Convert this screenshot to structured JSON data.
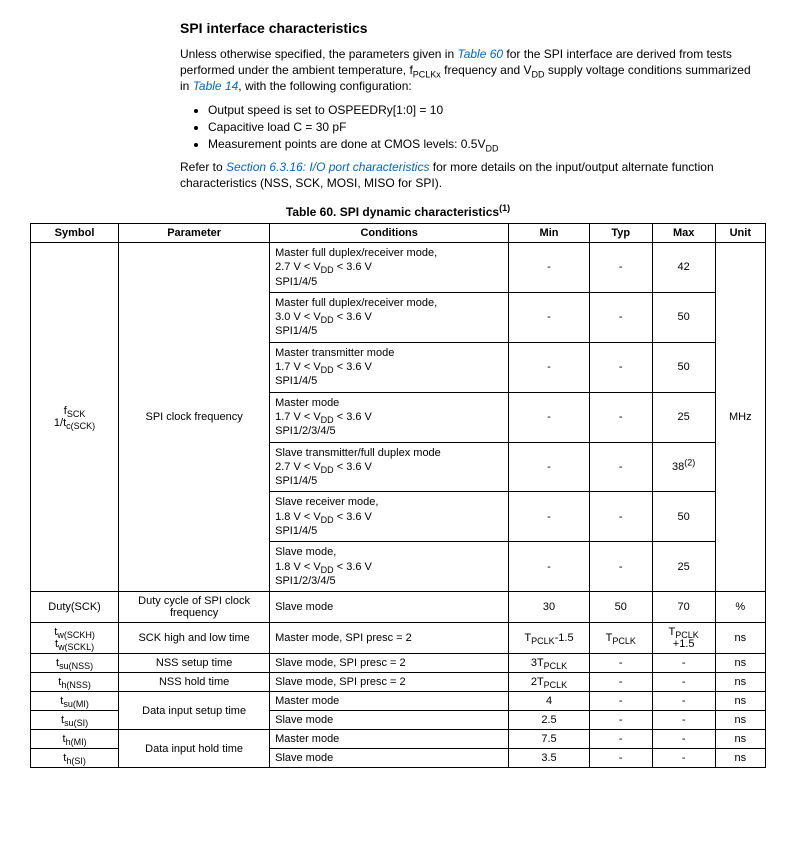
{
  "heading": "SPI interface characteristics",
  "intro": {
    "p1_a": "Unless otherwise specified, the parameters given in ",
    "p1_link1": "Table 60",
    "p1_b": " for the SPI interface are derived from tests performed under the ambient temperature, f",
    "p1_sub1": "PCLKx",
    "p1_c": " frequency and V",
    "p1_sub2": "DD",
    "p1_d": " supply voltage conditions summarized in ",
    "p1_link2": "Table 14",
    "p1_e": ", with the following configuration:",
    "bullet1": "Output speed is set to OSPEEDRy[1:0] = 10",
    "bullet2": "Capacitive load C = 30 pF",
    "bullet3_a": "Measurement points are done at CMOS levels: 0.5V",
    "bullet3_sub": "DD",
    "p2_a": "Refer to ",
    "p2_link": "Section 6.3.16: I/O port characteristics",
    "p2_b": " for more details on the input/output alternate function characteristics (NSS, SCK, MOSI, MISO for SPI)."
  },
  "caption_a": "Table 60. SPI dynamic characteristics",
  "caption_sup": "(1)",
  "headers": {
    "symbol": "Symbol",
    "parameter": "Parameter",
    "conditions": "Conditions",
    "min": "Min",
    "typ": "Typ",
    "max": "Max",
    "unit": "Unit"
  },
  "r1": {
    "sym_a": "f",
    "sym_a_sub": "SCK",
    "sym_b": "1/t",
    "sym_b_sub": "c(SCK)",
    "param": "SPI clock frequency",
    "c1_l1": "Master full duplex/receiver mode,",
    "c1_l2a": "2.7 V < V",
    "c1_l2sub": "DD",
    "c1_l2b": " < 3.6 V",
    "c1_l3": "SPI1/4/5",
    "c1_min": "-",
    "c1_typ": "-",
    "c1_max": "42",
    "c2_l1": "Master full duplex/receiver mode,",
    "c2_l2a": "3.0 V < V",
    "c2_l2sub": "DD",
    "c2_l2b": " < 3.6 V",
    "c2_l3": "SPI1/4/5",
    "c2_min": "-",
    "c2_typ": "-",
    "c2_max": "50",
    "c3_l1": "Master transmitter mode",
    "c3_l2a": "1.7 V < V",
    "c3_l2sub": "DD",
    "c3_l2b": " < 3.6 V",
    "c3_l3": "SPI1/4/5",
    "c3_min": "-",
    "c3_typ": "-",
    "c3_max": "50",
    "c4_l1": "Master mode",
    "c4_l2a": "1.7 V < V",
    "c4_l2sub": "DD",
    "c4_l2b": " < 3.6 V",
    "c4_l3": "SPI1/2/3/4/5",
    "c4_min": "-",
    "c4_typ": "-",
    "c4_max": "25",
    "unit": "MHz",
    "c5_l1": "Slave transmitter/full duplex mode",
    "c5_l2a": "2.7 V < V",
    "c5_l2sub": "DD",
    "c5_l2b": " < 3.6 V",
    "c5_l3": "SPI1/4/5",
    "c5_min": "-",
    "c5_typ": "-",
    "c5_max": "38",
    "c5_max_sup": "(2)",
    "c6_l1": "Slave receiver mode,",
    "c6_l2a": "1.8 V < V",
    "c6_l2sub": "DD",
    "c6_l2b": " < 3.6 V",
    "c6_l3": "SPI1/4/5",
    "c6_min": "-",
    "c6_typ": "-",
    "c6_max": "50",
    "c7_l1": "Slave mode,",
    "c7_l2a": "1.8 V < V",
    "c7_l2sub": "DD",
    "c7_l2b": " < 3.6 V",
    "c7_l3": "SPI1/2/3/4/5",
    "c7_min": "-",
    "c7_typ": "-",
    "c7_max": "25"
  },
  "r2": {
    "sym": "Duty(SCK)",
    "param": "Duty cycle of SPI clock frequency",
    "cond": "Slave mode",
    "min": "30",
    "typ": "50",
    "max": "70",
    "unit": "%"
  },
  "r3": {
    "sym_a": "t",
    "sym_a_sub": "w(SCKH)",
    "sym_b": "t",
    "sym_b_sub": "w(SCKL)",
    "param": "SCK high and low time",
    "cond": "Master mode, SPI presc = 2",
    "min_a": "T",
    "min_a_sub": "PCLK",
    "min_b": "-1.5",
    "typ_a": "T",
    "typ_a_sub": "PCLK",
    "max_a": "T",
    "max_a_sub": "PCLK",
    "max_b": "+1.5",
    "unit": "ns"
  },
  "r4": {
    "sym_a": "t",
    "sym_a_sub": "su(NSS)",
    "param": "NSS setup time",
    "cond": "Slave mode, SPI presc = 2",
    "min_a": "3T",
    "min_a_sub": "PCLK",
    "typ": "-",
    "max": "-",
    "unit": "ns"
  },
  "r5": {
    "sym_a": "t",
    "sym_a_sub": "h(NSS)",
    "param": "NSS hold time",
    "cond": "Slave mode, SPI presc = 2",
    "min_a": "2T",
    "min_a_sub": "PCLK",
    "typ": "-",
    "max": "-",
    "unit": "ns"
  },
  "r6": {
    "sym_a": "t",
    "sym_a_sub": "su(MI)",
    "param": "Data input setup time",
    "cond": "Master mode",
    "min": "4",
    "typ": "-",
    "max": "-",
    "unit": "ns"
  },
  "r7": {
    "sym_a": "t",
    "sym_a_sub": "su(SI)",
    "cond": "Slave mode",
    "min": "2.5",
    "typ": "-",
    "max": "-",
    "unit": "ns"
  },
  "r8": {
    "sym_a": "t",
    "sym_a_sub": "h(MI)",
    "param": "Data input hold time",
    "cond": "Master mode",
    "min": "7.5",
    "typ": "-",
    "max": "-",
    "unit": "ns"
  },
  "r9": {
    "sym_a": "t",
    "sym_a_sub": "h(SI)",
    "cond": "Slave mode",
    "min": "3.5",
    "typ": "-",
    "max": "-",
    "unit": "ns"
  }
}
